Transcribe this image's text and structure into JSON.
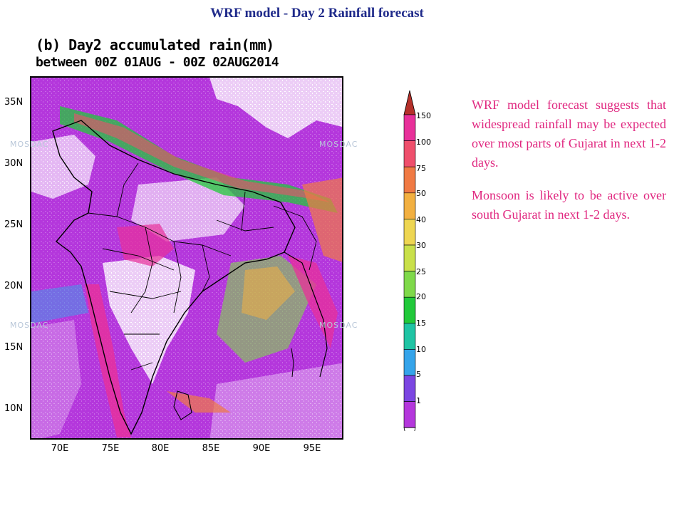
{
  "slide": {
    "title": "WRF model  - Day 2 Rainfall forecast"
  },
  "map": {
    "title_line1": "(b) Day2 accumulated rain(mm)",
    "title_line2": "between 00Z 01AUG - 00Z 02AUG2014",
    "lat_labels": [
      "35N",
      "30N",
      "25N",
      "20N",
      "15N",
      "10N"
    ],
    "lon_labels": [
      "70E",
      "75E",
      "80E",
      "85E",
      "90E",
      "95E"
    ],
    "watermark_left": "MOSDAC",
    "watermark_right": "MOSDAC"
  },
  "colorbar": {
    "labels": [
      "150",
      "100",
      "75",
      "50",
      "40",
      "30",
      "25",
      "20",
      "15",
      "10",
      "5",
      "1"
    ],
    "colors": {
      "top": "#b5302a",
      "r150": "#e8309a",
      "r100": "#ef4f6c",
      "r75": "#f07a44",
      "r50": "#f2b041",
      "r40": "#eed652",
      "r30": "#c9e04a",
      "r25": "#7fd94a",
      "r20": "#21c93a",
      "r15": "#1fc4a4",
      "r10": "#35a4ea",
      "r5": "#7b46e2",
      "r1": "#b437dc"
    }
  },
  "forecast": {
    "paragraph1": "WRF model forecast suggests that widespread rainfall may be expected over most parts of Gujarat in next 1-2 days.",
    "paragraph2": "Monsoon is likely to be active over south Gujarat in next 1-2 days.",
    "text_color": "#e0267f"
  },
  "title_color": "#1f2a8a"
}
